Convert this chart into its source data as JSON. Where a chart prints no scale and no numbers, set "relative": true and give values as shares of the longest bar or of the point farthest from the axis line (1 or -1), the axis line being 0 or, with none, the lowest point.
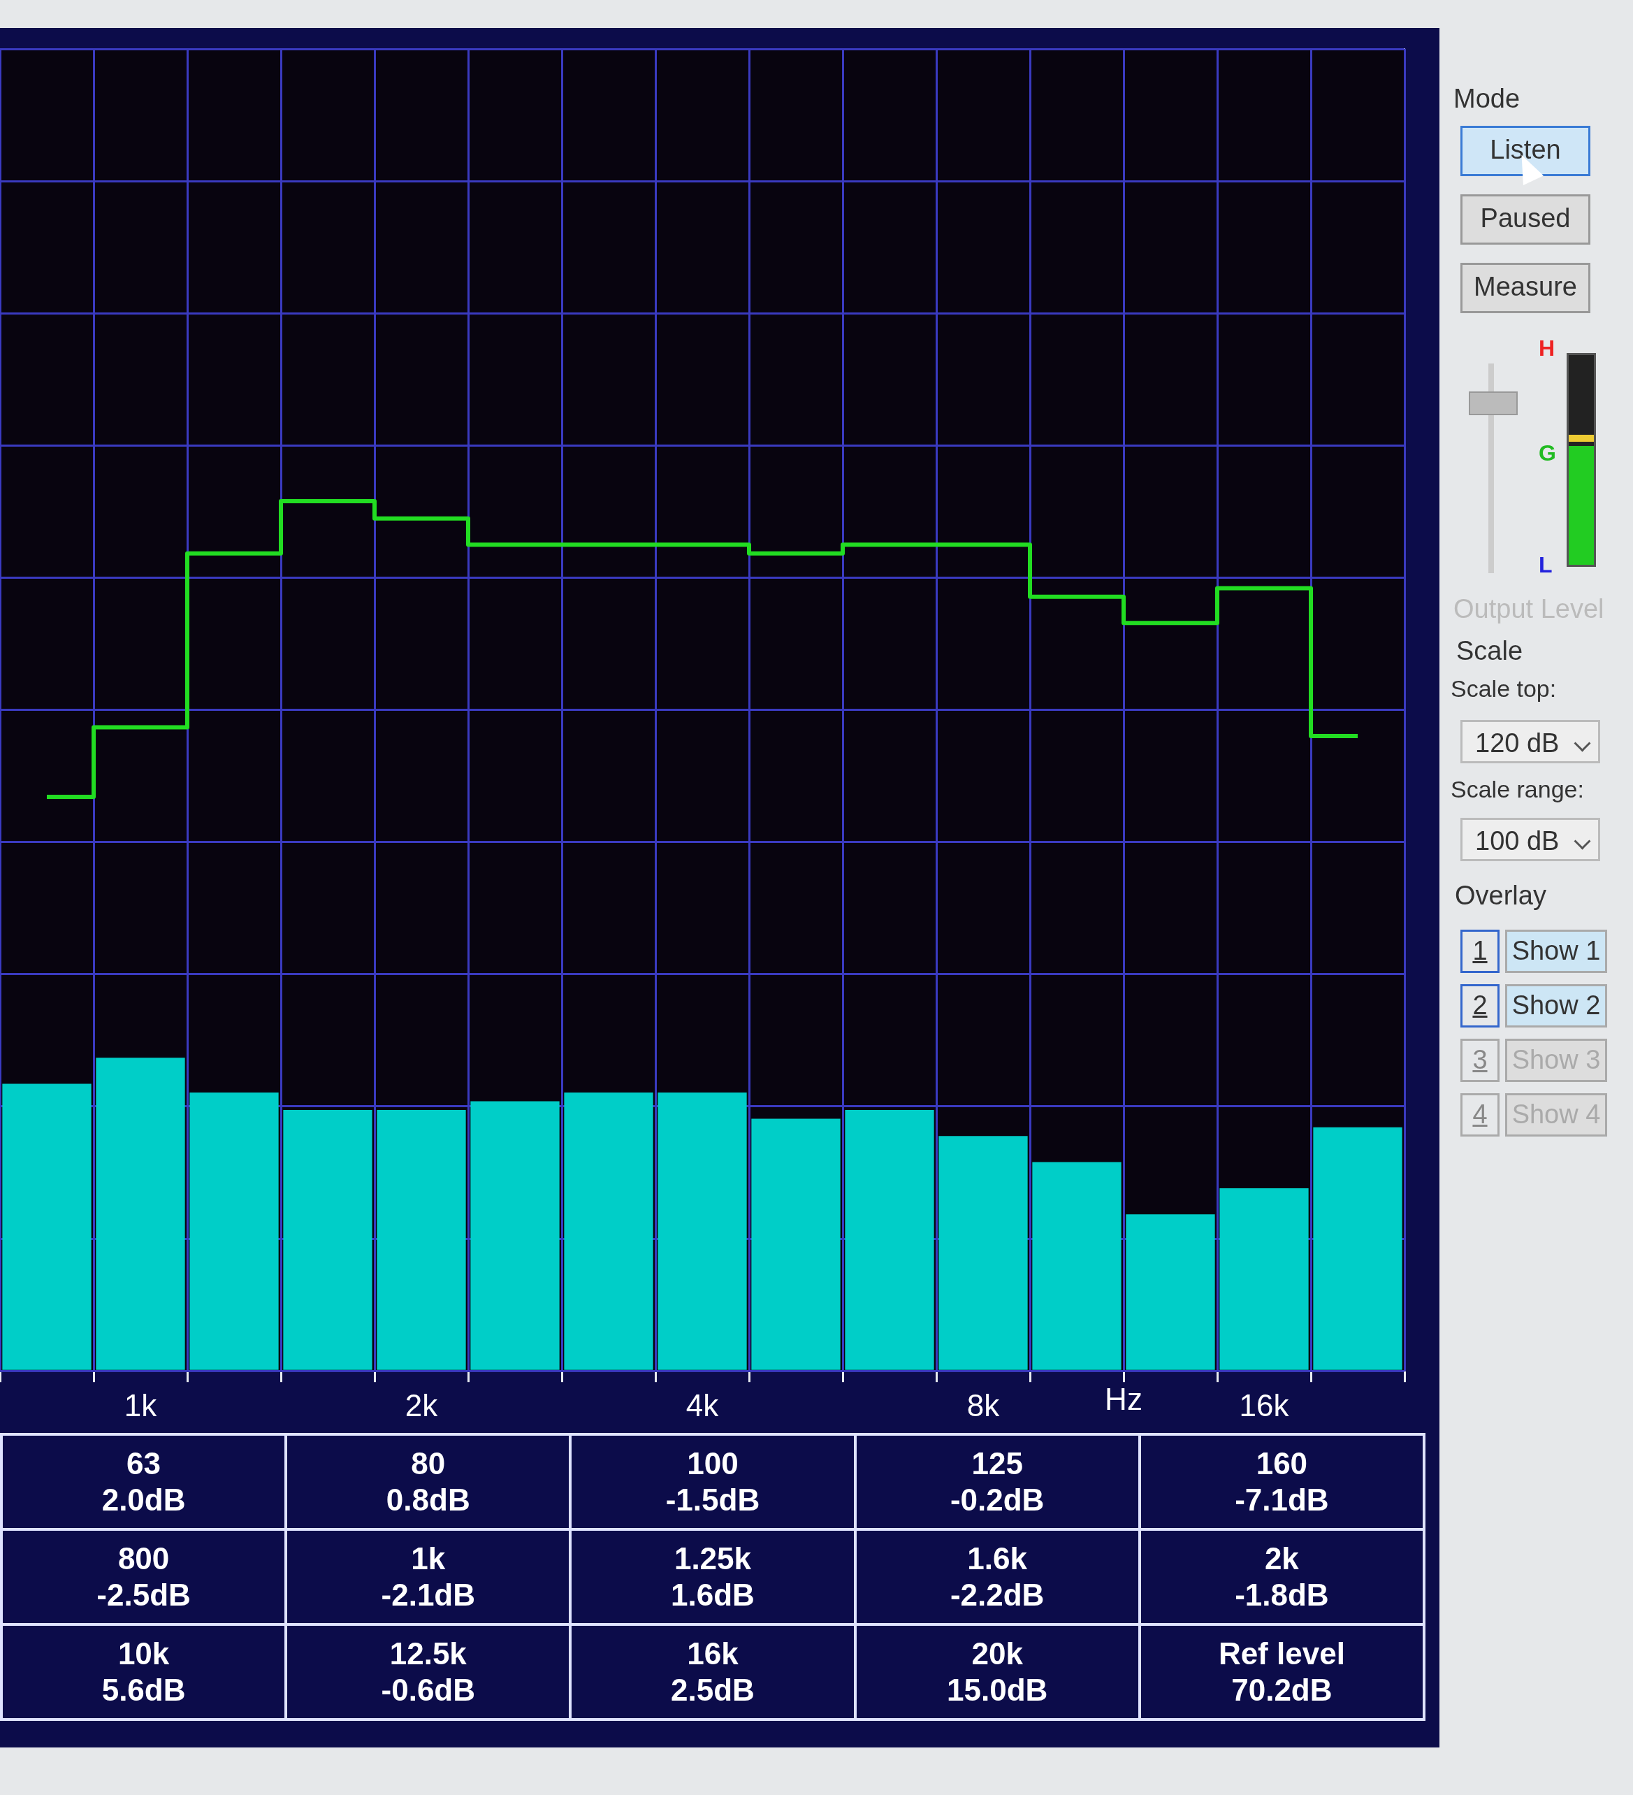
{
  "chart_data": {
    "type": "bar",
    "relative": true,
    "grid": true,
    "xlabel": "Hz",
    "categories": [
      null,
      "1k",
      null,
      null,
      "2k",
      null,
      null,
      "4k",
      null,
      null,
      "8k",
      null,
      null,
      "16k",
      null
    ],
    "series": [
      {
        "color": "#00cec8",
        "values": [
          0.33,
          0.36,
          0.32,
          0.3,
          0.3,
          0.31,
          0.32,
          0.32,
          0.29,
          0.3,
          0.27,
          0.24,
          0.18,
          0.21,
          0.28
        ]
      },
      {
        "type": "step",
        "color": "#22dd22",
        "values": [
          0.66,
          0.74,
          0.94,
          1,
          0.98,
          0.95,
          0.95,
          0.95,
          0.94,
          0.95,
          0.95,
          0.89,
          0.86,
          0.9,
          0.73
        ]
      }
    ],
    "annotations": [
      "63\n2.0dB",
      "80\n0.8dB",
      "100\n-1.5dB",
      "125\n-0.2dB",
      "160\n-7.1dB",
      "800\n-2.5dB",
      "1k\n-2.1dB",
      "1.25k\n1.6dB",
      "1.6k\n-2.2dB",
      "2k\n-1.8dB",
      "10k\n5.6dB",
      "12.5k\n-0.6dB",
      "16k\n2.5dB",
      "20k\n15.0dB",
      "Ref level\n70.2dB",
      "Mode",
      "Listen",
      "Paused",
      "Measure",
      "H",
      "G",
      "L",
      "Output Level",
      "Scale",
      "Scale top:",
      "120 dB",
      "Scale range:",
      "100 dB",
      "Overlay",
      "1",
      "Show 1",
      "2",
      "Show 2",
      "3",
      "Show 3",
      "4",
      "Show 4"
    ]
  }
}
